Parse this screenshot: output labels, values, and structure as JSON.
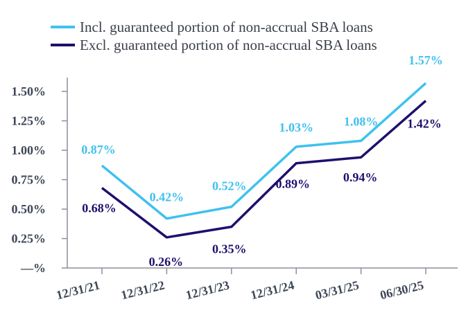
{
  "chart_data": {
    "type": "line",
    "title": "",
    "xlabel": "",
    "ylabel": "",
    "categories": [
      "12/31/21",
      "12/31/22",
      "12/31/23",
      "12/31/24",
      "03/31/25",
      "06/30/25"
    ],
    "y_ticks": [
      "—%",
      "0.25%",
      "0.50%",
      "0.75%",
      "1.00%",
      "1.25%",
      "1.50%"
    ],
    "ylim": [
      0,
      1.6
    ],
    "grid": false,
    "legend_position": "top",
    "series": [
      {
        "name": "Incl. guaranteed portion of non-accrual SBA loans",
        "values": [
          0.87,
          0.42,
          0.52,
          1.03,
          1.08,
          1.57
        ],
        "labels": [
          "0.87%",
          "0.42%",
          "0.52%",
          "1.03%",
          "1.08%",
          "1.57%"
        ],
        "color": "#3fc1ef"
      },
      {
        "name": "Excl. guaranteed portion of non-accrual SBA loans",
        "values": [
          0.68,
          0.26,
          0.35,
          0.89,
          0.94,
          1.42
        ],
        "labels": [
          "0.68%",
          "0.26%",
          "0.35%",
          "0.89%",
          "0.94%",
          "1.42%"
        ],
        "color": "#1e0f6e"
      }
    ],
    "axis_color": "#8a8f99",
    "tick_text_color": "#3d4656"
  }
}
